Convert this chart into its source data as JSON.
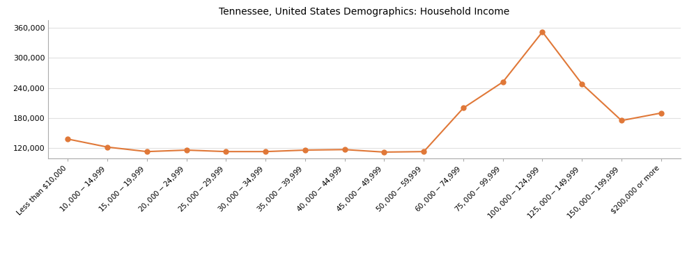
{
  "title": "Tennessee, United States Demographics: Household Income",
  "categories": [
    "Less than $10,000",
    "$10,000 - $14,999",
    "$15,000 - $19,999",
    "$20,000 - $24,999",
    "$25,000 - $29,999",
    "$30,000 - $34,999",
    "$35,000 - $39,999",
    "$40,000 - $44,999",
    "$45,000 - $49,999",
    "$50,000 - $59,999",
    "$60,000 - $74,999",
    "$75,000 - $99,999",
    "$100,000 - $124,999",
    "$125,000 - $149,999",
    "$150,000 - $199,999",
    "$200,000 or more"
  ],
  "values": [
    138000,
    122000,
    113000,
    116000,
    113000,
    113000,
    116000,
    117000,
    112000,
    113000,
    200000,
    252000,
    352000,
    248000,
    175000,
    190000
  ],
  "line_color": "#e07838",
  "marker_color": "#e07838",
  "background_color": "#ffffff",
  "ylim_min": 100000,
  "ylim_max": 375000,
  "yticks": [
    120000,
    180000,
    240000,
    300000,
    360000
  ],
  "title_fontsize": 10
}
